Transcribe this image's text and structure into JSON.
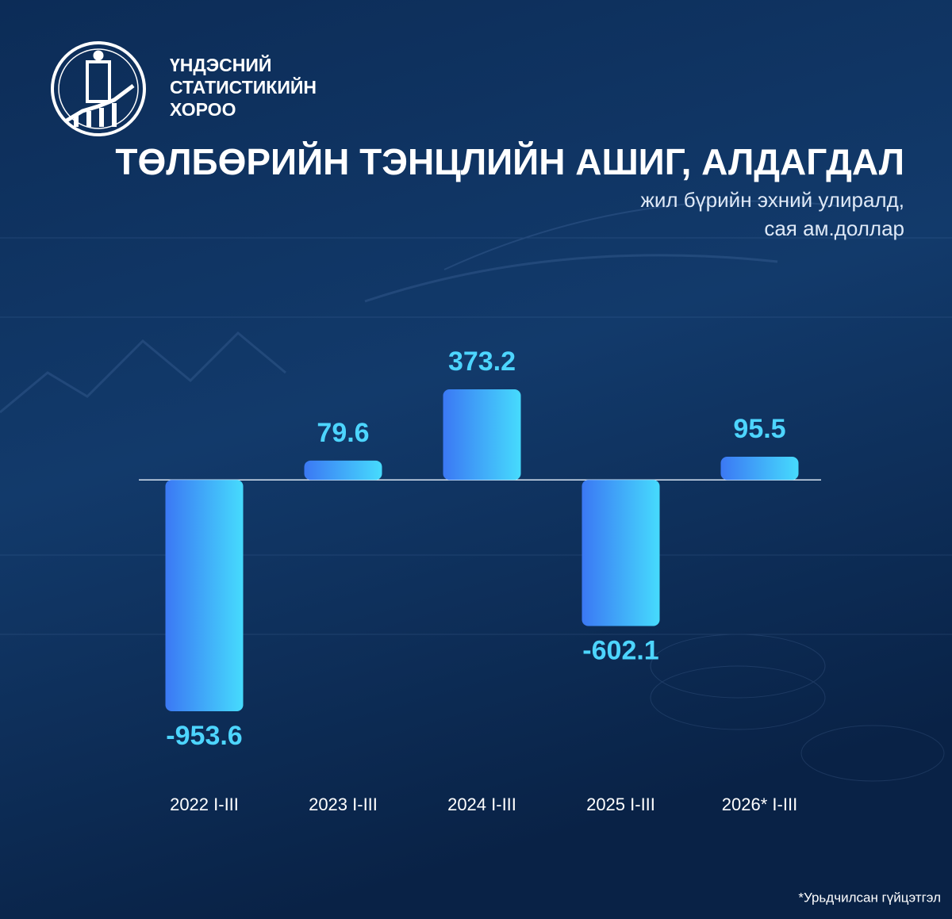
{
  "organization": [
    "ҮНДЭСНИЙ",
    "СТАТИСТИКИЙН",
    "ХОРОО"
  ],
  "footnote": "*Урьдчилсан гүйцэтгэл",
  "chart_data": {
    "type": "bar",
    "title": "ТӨЛБӨРИЙН ТЭНЦЛИЙН АШИГ, АЛДАГДАЛ",
    "subtitle": [
      "жил бүрийн эхний улиралд,",
      "сая ам.доллар"
    ],
    "categories": [
      "2022 I-III",
      "2023 I-III",
      "2024 I-III",
      "2025 I-III",
      "2026* I-III"
    ],
    "values": [
      -953.6,
      79.6,
      373.2,
      -602.1,
      95.5
    ],
    "color": [
      "#3b78f4",
      "#46dbfd"
    ],
    "label_color": "#4dd5ff"
  }
}
